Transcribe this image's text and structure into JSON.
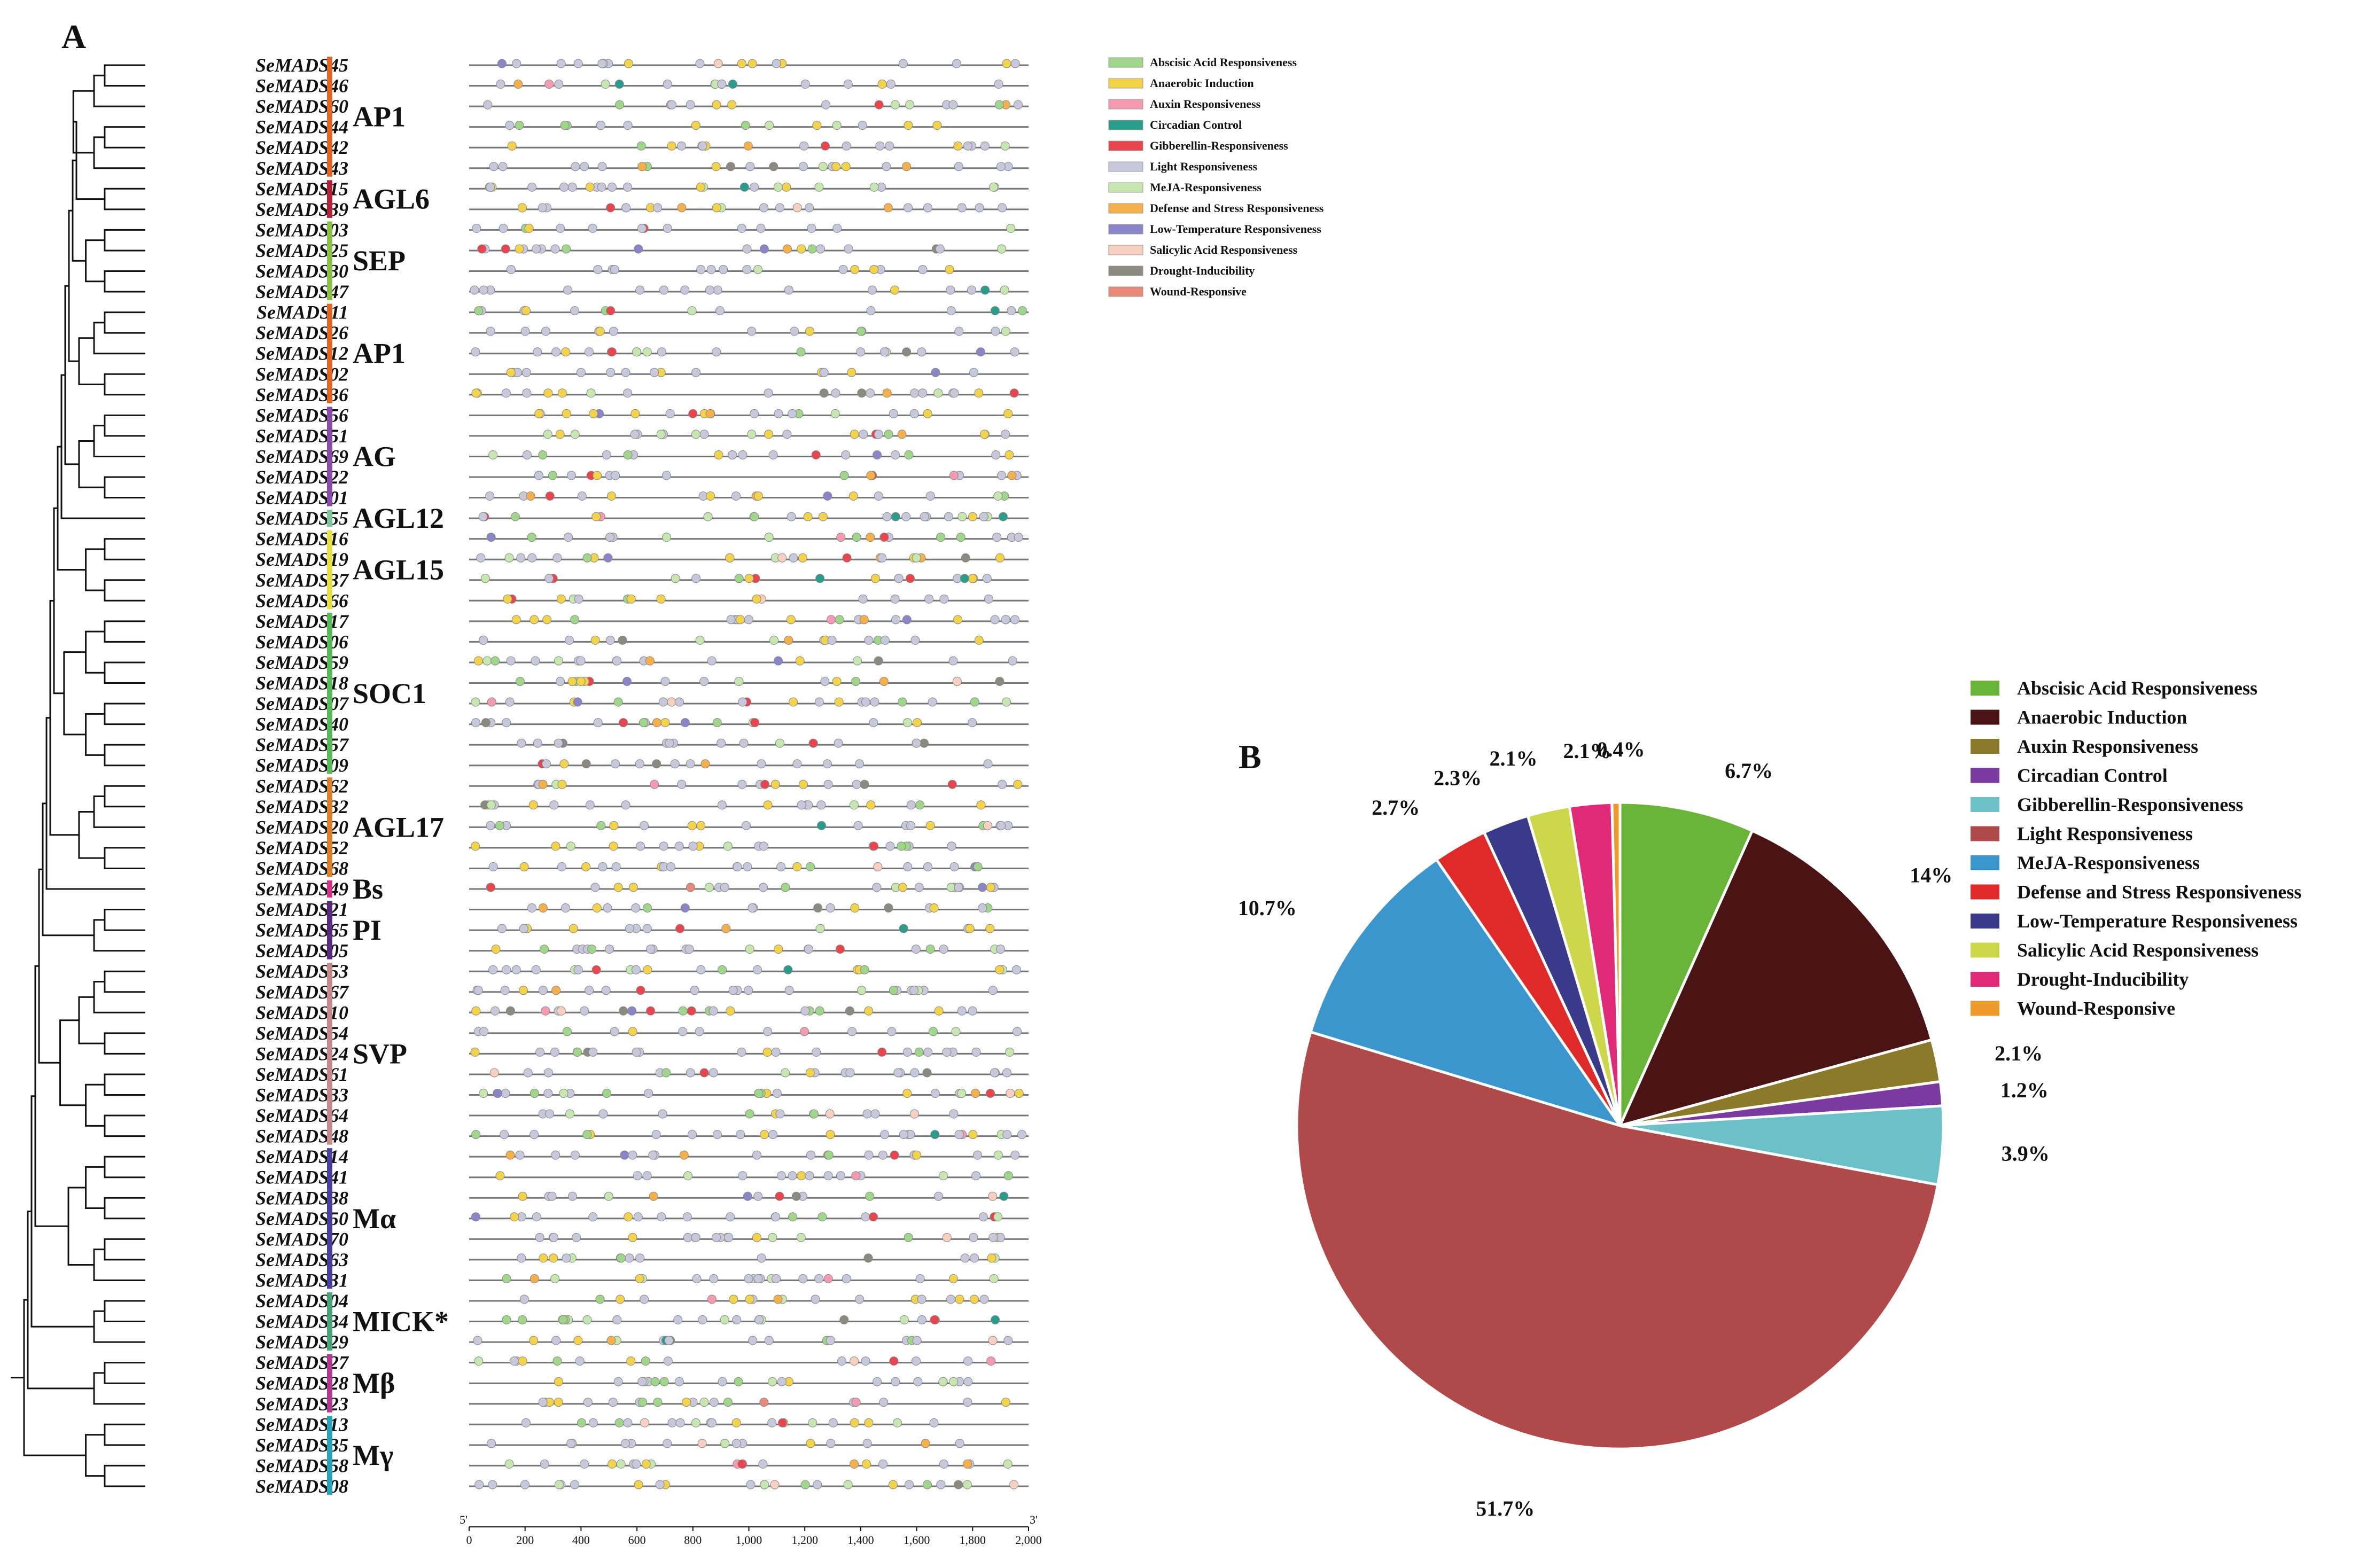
{
  "chart_data": [
    {
      "type": "phylogenetic-tree-with-promoter-elements",
      "panel_label": "A",
      "genes": [
        "SeMADS45",
        "SeMADS46",
        "SeMADS60",
        "SeMADS44",
        "SeMADS42",
        "SeMADS43",
        "SeMADS15",
        "SeMADS39",
        "SeMADS03",
        "SeMADS25",
        "SeMADS30",
        "SeMADS47",
        "SeMADS11",
        "SeMADS26",
        "SeMADS12",
        "SeMADS02",
        "SeMADS36",
        "SeMADS56",
        "SeMADS51",
        "SeMADS69",
        "SeMADS22",
        "SeMADS01",
        "SeMADS55",
        "SeMADS16",
        "SeMADS19",
        "SeMADS37",
        "SeMADS66",
        "SeMADS17",
        "SeMADS06",
        "SeMADS59",
        "SeMADS18",
        "SeMADS07",
        "SeMADS40",
        "SeMADS57",
        "SeMADS09",
        "SeMADS62",
        "SeMADS32",
        "SeMADS20",
        "SeMADS52",
        "SeMADS68",
        "SeMADS49",
        "SeMADS21",
        "SeMADS65",
        "SeMADS05",
        "SeMADS53",
        "SeMADS67",
        "SeMADS10",
        "SeMADS54",
        "SeMADS24",
        "SeMADS61",
        "SeMADS33",
        "SeMADS64",
        "SeMADS48",
        "SeMADS14",
        "SeMADS41",
        "SeMADS38",
        "SeMADS50",
        "SeMADS70",
        "SeMADS63",
        "SeMADS31",
        "SeMADS04",
        "SeMADS34",
        "SeMADS29",
        "SeMADS27",
        "SeMADS28",
        "SeMADS23",
        "SeMADS13",
        "SeMADS35",
        "SeMADS58",
        "SeMADS08"
      ],
      "groups": [
        {
          "label": "AP1",
          "from": 0,
          "to": 5,
          "color": "#e0672a"
        },
        {
          "label": "AGL6",
          "from": 6,
          "to": 7,
          "color": "#b3223a"
        },
        {
          "label": "SEP",
          "from": 8,
          "to": 11,
          "color": "#8cc04a"
        },
        {
          "label": "AP1",
          "from": 12,
          "to": 16,
          "color": "#e0672a"
        },
        {
          "label": "AG",
          "from": 17,
          "to": 21,
          "color": "#8a4aa8"
        },
        {
          "label": "AGL12",
          "from": 22,
          "to": 22,
          "color": "#7fc79a"
        },
        {
          "label": "AGL15",
          "from": 23,
          "to": 26,
          "color": "#e6e040"
        },
        {
          "label": "SOC1",
          "from": 27,
          "to": 34,
          "color": "#5cb85c"
        },
        {
          "label": "AGL17",
          "from": 35,
          "to": 39,
          "color": "#d9822b"
        },
        {
          "label": "Bs",
          "from": 40,
          "to": 40,
          "color": "#d6338a"
        },
        {
          "label": "PI",
          "from": 41,
          "to": 43,
          "color": "#5a2a80"
        },
        {
          "label": "SVP",
          "from": 44,
          "to": 52,
          "color": "#c48b8b"
        },
        {
          "label": "Mα",
          "from": 53,
          "to": 59,
          "color": "#4a3f9a"
        },
        {
          "label": "MICK*",
          "from": 60,
          "to": 62,
          "color": "#4aa37a"
        },
        {
          "label": "Mβ",
          "from": 63,
          "to": 65,
          "color": "#b03a90"
        },
        {
          "label": "Mγ",
          "from": 66,
          "to": 69,
          "color": "#2aa3b8"
        }
      ],
      "axis": {
        "ticks": [
          "0",
          "200",
          "400",
          "600",
          "800",
          "1,000",
          "1,200",
          "1,400",
          "1,600",
          "1,800",
          "2,000"
        ],
        "start_label": "5'",
        "end_label": "3'",
        "range": [
          0,
          2000
        ]
      },
      "legend": [
        {
          "name": "Abscisic Acid Responsiveness",
          "color": "#9fd68a"
        },
        {
          "name": "Anaerobic Induction",
          "color": "#f3d34a"
        },
        {
          "name": "Auxin Responsiveness",
          "color": "#f59ab0"
        },
        {
          "name": "Circadian Control",
          "color": "#2a9c8c"
        },
        {
          "name": "Gibberellin-Responsiveness",
          "color": "#e8454f"
        },
        {
          "name": "Light Responsiveness",
          "color": "#c8c8dc"
        },
        {
          "name": "MeJA-Responsiveness",
          "color": "#c6e8b0"
        },
        {
          "name": "Defense and Stress Responsiveness",
          "color": "#f6b04a"
        },
        {
          "name": "Low-Temperature Responsiveness",
          "color": "#8a84c8"
        },
        {
          "name": "Salicylic Acid Responsiveness",
          "color": "#f8d0c0"
        },
        {
          "name": "Drought-Inducibility",
          "color": "#8a8a80"
        },
        {
          "name": "Wound-Responsive",
          "color": "#e88a7a"
        }
      ]
    },
    {
      "type": "pie",
      "panel_label": "B",
      "slices": [
        {
          "name": "Abscisic Acid Responsiveness",
          "value": 6.7,
          "label": "6.7%",
          "color": "#6bb43a"
        },
        {
          "name": "Anaerobic Induction",
          "value": 14,
          "label": "14%",
          "color": "#4b1414"
        },
        {
          "name": "Auxin Responsiveness",
          "value": 2.1,
          "label": "2.1%",
          "color": "#8a7a2a"
        },
        {
          "name": "Circadian Control",
          "value": 1.2,
          "label": "1.2%",
          "color": "#7a3aa0"
        },
        {
          "name": "Gibberellin-Responsiveness",
          "value": 3.9,
          "label": "3.9%",
          "color": "#6cc0c8"
        },
        {
          "name": "Light Responsiveness",
          "value": 51.7,
          "label": "51.7%",
          "color": "#b04a4a"
        },
        {
          "name": "MeJA-Responsiveness",
          "value": 10.7,
          "label": "10.7%",
          "color": "#3a96cc"
        },
        {
          "name": "Defense and Stress Responsiveness",
          "value": 2.7,
          "label": "2.7%",
          "color": "#e02a2a"
        },
        {
          "name": "Low-Temperature Responsiveness",
          "value": 2.3,
          "label": "2.3%",
          "color": "#3a3a8a"
        },
        {
          "name": "Salicylic Acid Responsiveness",
          "value": 2.1,
          "label": "2.1%",
          "color": "#ccd84a"
        },
        {
          "name": "Drought-Inducibility",
          "value": 2.1,
          "label": "2.1%",
          "color": "#e02a78"
        },
        {
          "name": "Wound-Responsive",
          "value": 0.4,
          "label": "0.4%",
          "color": "#ee9a2a"
        }
      ]
    }
  ]
}
